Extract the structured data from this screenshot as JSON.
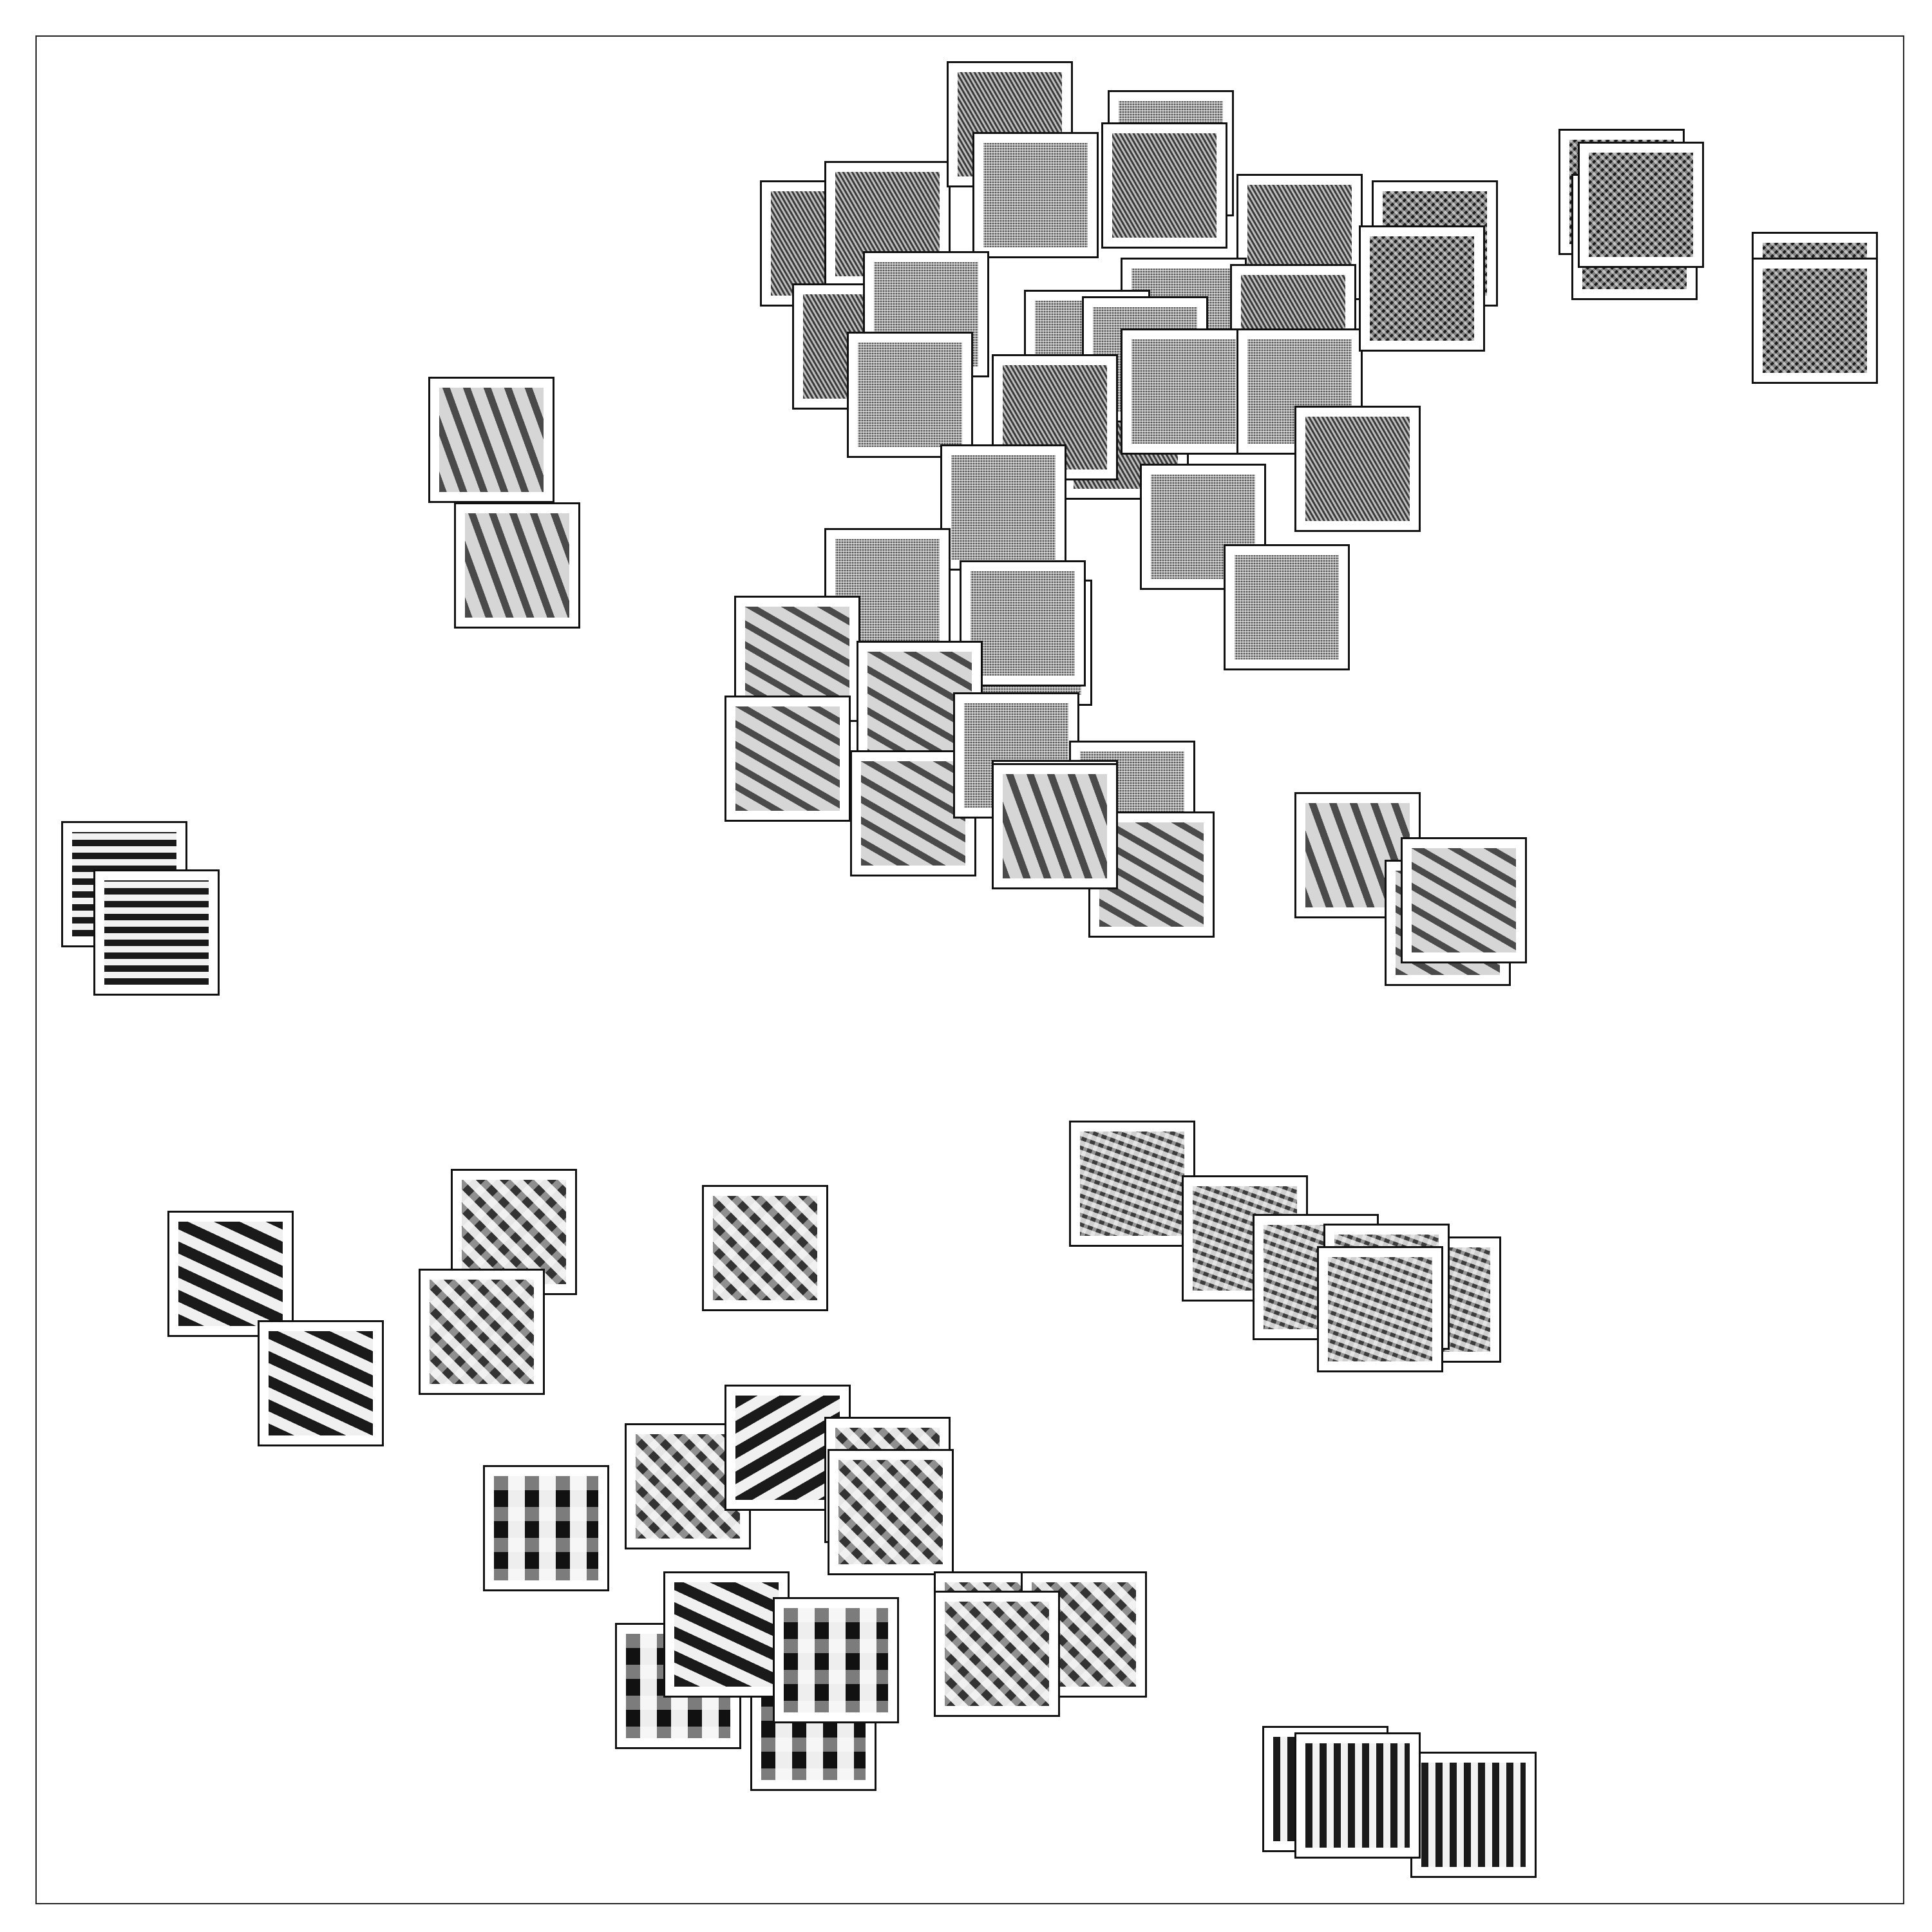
{
  "figure": {
    "frame_color": "#222222",
    "thumb_border_color": "#111111",
    "thumb_background": "#ffffff"
  },
  "texture_styles": {
    "fine-diagonal": {
      "fg": "#3a3a3a",
      "bg": "#bdbdbd",
      "angle": 60,
      "period": 6,
      "weight": 0.45
    },
    "fine-noise": {
      "fg": "#555555",
      "bg": "#b4b4b4",
      "angle": 0,
      "period": 4,
      "weight": 0.5,
      "cross": true
    },
    "dark-dots": {
      "fg": "#1c1c1c",
      "bg": "#8f8f8f",
      "angle": 45,
      "period": 9,
      "weight": 0.6,
      "cross": true
    },
    "diagonal-ribbed": {
      "fg": "#4a4a4a",
      "bg": "#d6d6d6",
      "angle": 30,
      "period": 28,
      "weight": 0.35
    },
    "steep-ribbed": {
      "fg": "#4a4a4a",
      "bg": "#d6d6d6",
      "angle": 70,
      "period": 30,
      "weight": 0.35
    },
    "vertical-bars": {
      "fg": "#1a1a1a",
      "bg": "#f2f2f2",
      "angle": 0,
      "period": 20,
      "weight": 0.5
    },
    "bold-diagonal": {
      "fg": "#1a1a1a",
      "bg": "#f0f0f0",
      "angle": 25,
      "period": 34,
      "weight": 0.5
    },
    "bold-diagonal-left": {
      "fg": "#1a1a1a",
      "bg": "#f0f0f0",
      "angle": -30,
      "period": 34,
      "weight": 0.5
    },
    "woven-blocks": {
      "fg": "#333333",
      "bg": "#e6e6e6",
      "angle": 45,
      "period": 26,
      "weight": 0.45,
      "cross": true
    },
    "dotted-grid": {
      "fg": "#3d3d3d",
      "bg": "#cfcfcf",
      "angle": 20,
      "period": 14,
      "weight": 0.4,
      "cross": true
    },
    "zigzag": {
      "fg": "#111111",
      "bg": "#eeeeee",
      "angle": 90,
      "period": 48,
      "weight": 0.45,
      "cross": true
    },
    "horizontal-bars": {
      "fg": "#1a1a1a",
      "bg": "#f2f2f2",
      "angle": 90,
      "period": 22,
      "weight": 0.5
    }
  },
  "thumbnails": [
    {
      "texture": "fine-diagonal"
    },
    {
      "texture": "fine-diagonal"
    },
    {
      "texture": "fine-diagonal"
    },
    {
      "texture": "fine-noise"
    },
    {
      "texture": "fine-noise"
    },
    {
      "texture": "fine-diagonal"
    },
    {
      "texture": "fine-diagonal"
    },
    {
      "texture": "fine-noise"
    },
    {
      "texture": "fine-diagonal"
    },
    {
      "texture": "fine-diagonal"
    },
    {
      "texture": "fine-noise"
    },
    {
      "texture": "fine-noise"
    },
    {
      "texture": "fine-diagonal"
    },
    {
      "texture": "fine-noise"
    },
    {
      "texture": "fine-noise"
    },
    {
      "texture": "fine-diagonal"
    },
    {
      "texture": "fine-noise"
    },
    {
      "texture": "fine-noise"
    },
    {
      "texture": "fine-noise"
    },
    {
      "texture": "fine-diagonal"
    },
    {
      "texture": "fine-noise"
    },
    {
      "texture": "fine-noise"
    },
    {
      "texture": "fine-noise"
    },
    {
      "texture": "fine-noise"
    },
    {
      "texture": "diagonal-ribbed"
    },
    {
      "texture": "fine-noise"
    },
    {
      "texture": "diagonal-ribbed"
    },
    {
      "texture": "diagonal-ribbed"
    },
    {
      "texture": "diagonal-ribbed"
    },
    {
      "texture": "fine-noise"
    },
    {
      "texture": "fine-noise"
    },
    {
      "texture": "diagonal-ribbed"
    },
    {
      "texture": "steep-ribbed"
    },
    {
      "texture": "steep-ribbed"
    },
    {
      "texture": "dark-dots"
    },
    {
      "texture": "dark-dots"
    },
    {
      "texture": "dark-dots"
    },
    {
      "texture": "dark-dots"
    },
    {
      "texture": "dark-dots"
    },
    {
      "texture": "dark-dots"
    },
    {
      "texture": "dark-dots"
    },
    {
      "texture": "steep-ribbed"
    },
    {
      "texture": "steep-ribbed"
    },
    {
      "texture": "steep-ribbed"
    },
    {
      "texture": "diagonal-ribbed"
    },
    {
      "texture": "diagonal-ribbed"
    },
    {
      "texture": "vertical-bars"
    },
    {
      "texture": "vertical-bars"
    },
    {
      "texture": "bold-diagonal"
    },
    {
      "texture": "bold-diagonal"
    },
    {
      "texture": "woven-blocks"
    },
    {
      "texture": "woven-blocks"
    },
    {
      "texture": "woven-blocks"
    },
    {
      "texture": "dotted-grid"
    },
    {
      "texture": "dotted-grid"
    },
    {
      "texture": "dotted-grid"
    },
    {
      "texture": "dotted-grid"
    },
    {
      "texture": "dotted-grid"
    },
    {
      "texture": "dotted-grid"
    },
    {
      "texture": "woven-blocks"
    },
    {
      "texture": "bold-diagonal-left"
    },
    {
      "texture": "woven-blocks"
    },
    {
      "texture": "woven-blocks"
    },
    {
      "texture": "zigzag"
    },
    {
      "texture": "zigzag"
    },
    {
      "texture": "zigzag"
    },
    {
      "texture": "bold-diagonal"
    },
    {
      "texture": "zigzag"
    },
    {
      "texture": "woven-blocks"
    },
    {
      "texture": "woven-blocks"
    },
    {
      "texture": "woven-blocks"
    },
    {
      "texture": "horizontal-bars"
    },
    {
      "texture": "horizontal-bars"
    },
    {
      "texture": "horizontal-bars"
    }
  ]
}
